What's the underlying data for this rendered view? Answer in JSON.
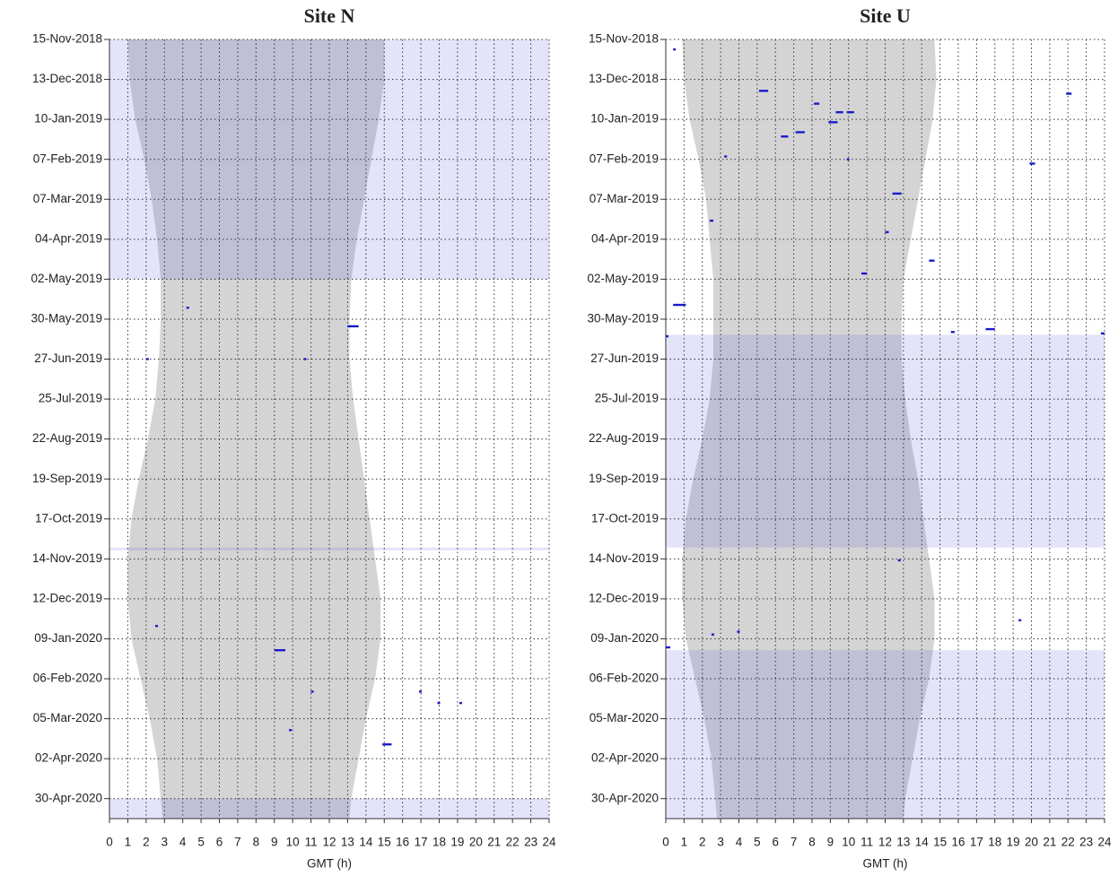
{
  "chart_data": [
    {
      "type": "activity",
      "title": "Site N",
      "xlabel": "GMT (h)",
      "xlim": [
        0,
        24
      ],
      "xticks": [
        0,
        1,
        2,
        3,
        4,
        5,
        6,
        7,
        8,
        9,
        10,
        11,
        12,
        13,
        14,
        15,
        16,
        17,
        18,
        19,
        20,
        21,
        22,
        23,
        24
      ],
      "ylim": [
        "2018-11-15",
        "2020-05-14"
      ],
      "yticks": [
        {
          "value": "2018-11-15",
          "label": "15-Nov-2018"
        },
        {
          "value": "2018-12-13",
          "label": "13-Dec-2018"
        },
        {
          "value": "2019-01-10",
          "label": "10-Jan-2019"
        },
        {
          "value": "2019-02-07",
          "label": "07-Feb-2019"
        },
        {
          "value": "2019-03-07",
          "label": "07-Mar-2019"
        },
        {
          "value": "2019-04-04",
          "label": "04-Apr-2019"
        },
        {
          "value": "2019-05-02",
          "label": "02-May-2019"
        },
        {
          "value": "2019-05-30",
          "label": "30-May-2019"
        },
        {
          "value": "2019-06-27",
          "label": "27-Jun-2019"
        },
        {
          "value": "2019-07-25",
          "label": "25-Jul-2019"
        },
        {
          "value": "2019-08-22",
          "label": "22-Aug-2019"
        },
        {
          "value": "2019-09-19",
          "label": "19-Sep-2019"
        },
        {
          "value": "2019-10-17",
          "label": "17-Oct-2019"
        },
        {
          "value": "2019-11-14",
          "label": "14-Nov-2019"
        },
        {
          "value": "2019-12-12",
          "label": "12-Dec-2019"
        },
        {
          "value": "2020-01-09",
          "label": "09-Jan-2020"
        },
        {
          "value": "2020-02-06",
          "label": "06-Feb-2020"
        },
        {
          "value": "2020-03-05",
          "label": "05-Mar-2020"
        },
        {
          "value": "2020-04-02",
          "label": "02-Apr-2020"
        },
        {
          "value": "2020-04-30",
          "label": "30-Apr-2020"
        }
      ],
      "grid": true,
      "band_color": "rgba(100,100,225,0.18)",
      "bands": {
        "start": [
          "2018-11-15",
          "2019-11-06",
          "2020-04-30"
        ],
        "end": [
          "2019-05-02",
          "2019-11-08",
          "2020-05-14"
        ]
      },
      "night_color": "#d4d4d4",
      "night": {
        "y": [
          "2018-11-15",
          "2018-12-13",
          "2019-01-10",
          "2019-02-07",
          "2019-03-07",
          "2019-04-04",
          "2019-05-02",
          "2019-05-30",
          "2019-06-27",
          "2019-07-25",
          "2019-08-22",
          "2019-09-19",
          "2019-10-17",
          "2019-11-14",
          "2019-12-12",
          "2020-01-09",
          "2020-02-06",
          "2020-03-05",
          "2020-04-02",
          "2020-04-30",
          "2020-05-14"
        ],
        "start": [
          1.0,
          1.1,
          1.4,
          1.9,
          2.3,
          2.6,
          2.8,
          2.8,
          2.7,
          2.5,
          2.1,
          1.6,
          1.2,
          1.0,
          1.0,
          1.2,
          1.7,
          2.2,
          2.6,
          2.8,
          2.9
        ],
        "end": [
          15.0,
          15.0,
          14.7,
          14.3,
          13.9,
          13.5,
          13.2,
          13.1,
          13.1,
          13.3,
          13.6,
          13.9,
          14.2,
          14.5,
          14.8,
          14.8,
          14.5,
          14.0,
          13.6,
          13.2,
          13.1
        ]
      },
      "detection_color": "#1a1acc",
      "detections": {
        "x": [
          4.2,
          13.0,
          2.0,
          10.6,
          2.5,
          9.0,
          11.0,
          16.9,
          17.9,
          19.1,
          9.8,
          14.9
        ],
        "x_end": [
          4.2,
          13.6,
          2.0,
          10.6,
          2.5,
          9.6,
          11.0,
          16.9,
          17.9,
          19.1,
          9.8,
          15.4
        ],
        "y": [
          "2019-05-22",
          "2019-06-04",
          "2019-06-27",
          "2019-06-27",
          "2019-12-31",
          "2020-01-17",
          "2020-02-15",
          "2020-02-15",
          "2020-02-23",
          "2020-02-23",
          "2020-03-13",
          "2020-03-23"
        ]
      }
    },
    {
      "type": "activity",
      "title": "Site U",
      "xlabel": "GMT (h)",
      "xlim": [
        0,
        24
      ],
      "xticks": [
        0,
        1,
        2,
        3,
        4,
        5,
        6,
        7,
        8,
        9,
        10,
        11,
        12,
        13,
        14,
        15,
        16,
        17,
        18,
        19,
        20,
        21,
        22,
        23,
        24
      ],
      "ylim": [
        "2018-11-15",
        "2020-05-14"
      ],
      "yticks": [
        {
          "value": "2018-11-15",
          "label": "15-Nov-2018"
        },
        {
          "value": "2018-12-13",
          "label": "13-Dec-2018"
        },
        {
          "value": "2019-01-10",
          "label": "10-Jan-2019"
        },
        {
          "value": "2019-02-07",
          "label": "07-Feb-2019"
        },
        {
          "value": "2019-03-07",
          "label": "07-Mar-2019"
        },
        {
          "value": "2019-04-04",
          "label": "04-Apr-2019"
        },
        {
          "value": "2019-05-02",
          "label": "02-May-2019"
        },
        {
          "value": "2019-05-30",
          "label": "30-May-2019"
        },
        {
          "value": "2019-06-27",
          "label": "27-Jun-2019"
        },
        {
          "value": "2019-07-25",
          "label": "25-Jul-2019"
        },
        {
          "value": "2019-08-22",
          "label": "22-Aug-2019"
        },
        {
          "value": "2019-09-19",
          "label": "19-Sep-2019"
        },
        {
          "value": "2019-10-17",
          "label": "17-Oct-2019"
        },
        {
          "value": "2019-11-14",
          "label": "14-Nov-2019"
        },
        {
          "value": "2019-12-12",
          "label": "12-Dec-2019"
        },
        {
          "value": "2020-01-09",
          "label": "09-Jan-2020"
        },
        {
          "value": "2020-02-06",
          "label": "06-Feb-2020"
        },
        {
          "value": "2020-03-05",
          "label": "05-Mar-2020"
        },
        {
          "value": "2020-04-02",
          "label": "02-Apr-2020"
        },
        {
          "value": "2020-04-30",
          "label": "30-Apr-2020"
        }
      ],
      "grid": true,
      "band_color": "rgba(100,100,225,0.18)",
      "bands": {
        "start": [
          "2019-06-10",
          "2020-01-17"
        ],
        "end": [
          "2019-11-06",
          "2020-05-14"
        ]
      },
      "night_color": "#d4d4d4",
      "night": {
        "y": [
          "2018-11-15",
          "2018-12-13",
          "2019-01-10",
          "2019-02-07",
          "2019-03-07",
          "2019-04-04",
          "2019-05-02",
          "2019-05-30",
          "2019-06-27",
          "2019-07-25",
          "2019-08-22",
          "2019-09-19",
          "2019-10-17",
          "2019-11-14",
          "2019-12-12",
          "2020-01-09",
          "2020-02-06",
          "2020-03-05",
          "2020-04-02",
          "2020-04-30",
          "2020-05-14"
        ],
        "start": [
          0.9,
          1.0,
          1.3,
          1.8,
          2.2,
          2.4,
          2.6,
          2.6,
          2.6,
          2.4,
          2.0,
          1.5,
          1.1,
          0.9,
          0.9,
          1.1,
          1.6,
          2.1,
          2.5,
          2.7,
          2.8
        ],
        "end": [
          14.7,
          14.8,
          14.6,
          14.2,
          13.8,
          13.4,
          13.0,
          12.9,
          12.9,
          13.1,
          13.4,
          13.8,
          14.1,
          14.4,
          14.7,
          14.7,
          14.4,
          13.9,
          13.5,
          13.1,
          13.0
        ]
      },
      "detection_color": "#1a1acc",
      "detections": {
        "x": [
          0.4,
          5.1,
          8.1,
          9.3,
          9.9,
          8.9,
          6.3,
          7.1,
          21.9,
          3.2,
          9.9,
          19.9,
          12.4,
          2.4,
          12.0,
          14.4,
          10.7,
          0.4,
          0.0,
          15.6,
          17.5,
          23.8,
          12.7,
          19.3,
          2.5,
          3.9,
          0.0
        ],
        "x_end": [
          0.4,
          5.6,
          8.4,
          9.7,
          10.3,
          9.4,
          6.7,
          7.6,
          22.2,
          3.2,
          9.9,
          20.2,
          12.9,
          2.6,
          12.2,
          14.7,
          11.0,
          1.1,
          0.15,
          15.8,
          18.0,
          24.0,
          12.7,
          19.3,
          2.5,
          3.9,
          0.25
        ],
        "y": [
          "2018-11-22",
          "2018-12-21",
          "2018-12-30",
          "2019-01-05",
          "2019-01-05",
          "2019-01-12",
          "2019-01-22",
          "2019-01-19",
          "2018-12-23",
          "2019-02-05",
          "2019-02-07",
          "2019-02-10",
          "2019-03-03",
          "2019-03-22",
          "2019-03-30",
          "2019-04-19",
          "2019-04-28",
          "2019-05-20",
          "2019-06-11",
          "2019-06-08",
          "2019-06-06",
          "2019-06-09",
          "2019-11-15",
          "2019-12-27",
          "2020-01-06",
          "2020-01-04",
          "2020-01-15"
        ]
      }
    }
  ]
}
